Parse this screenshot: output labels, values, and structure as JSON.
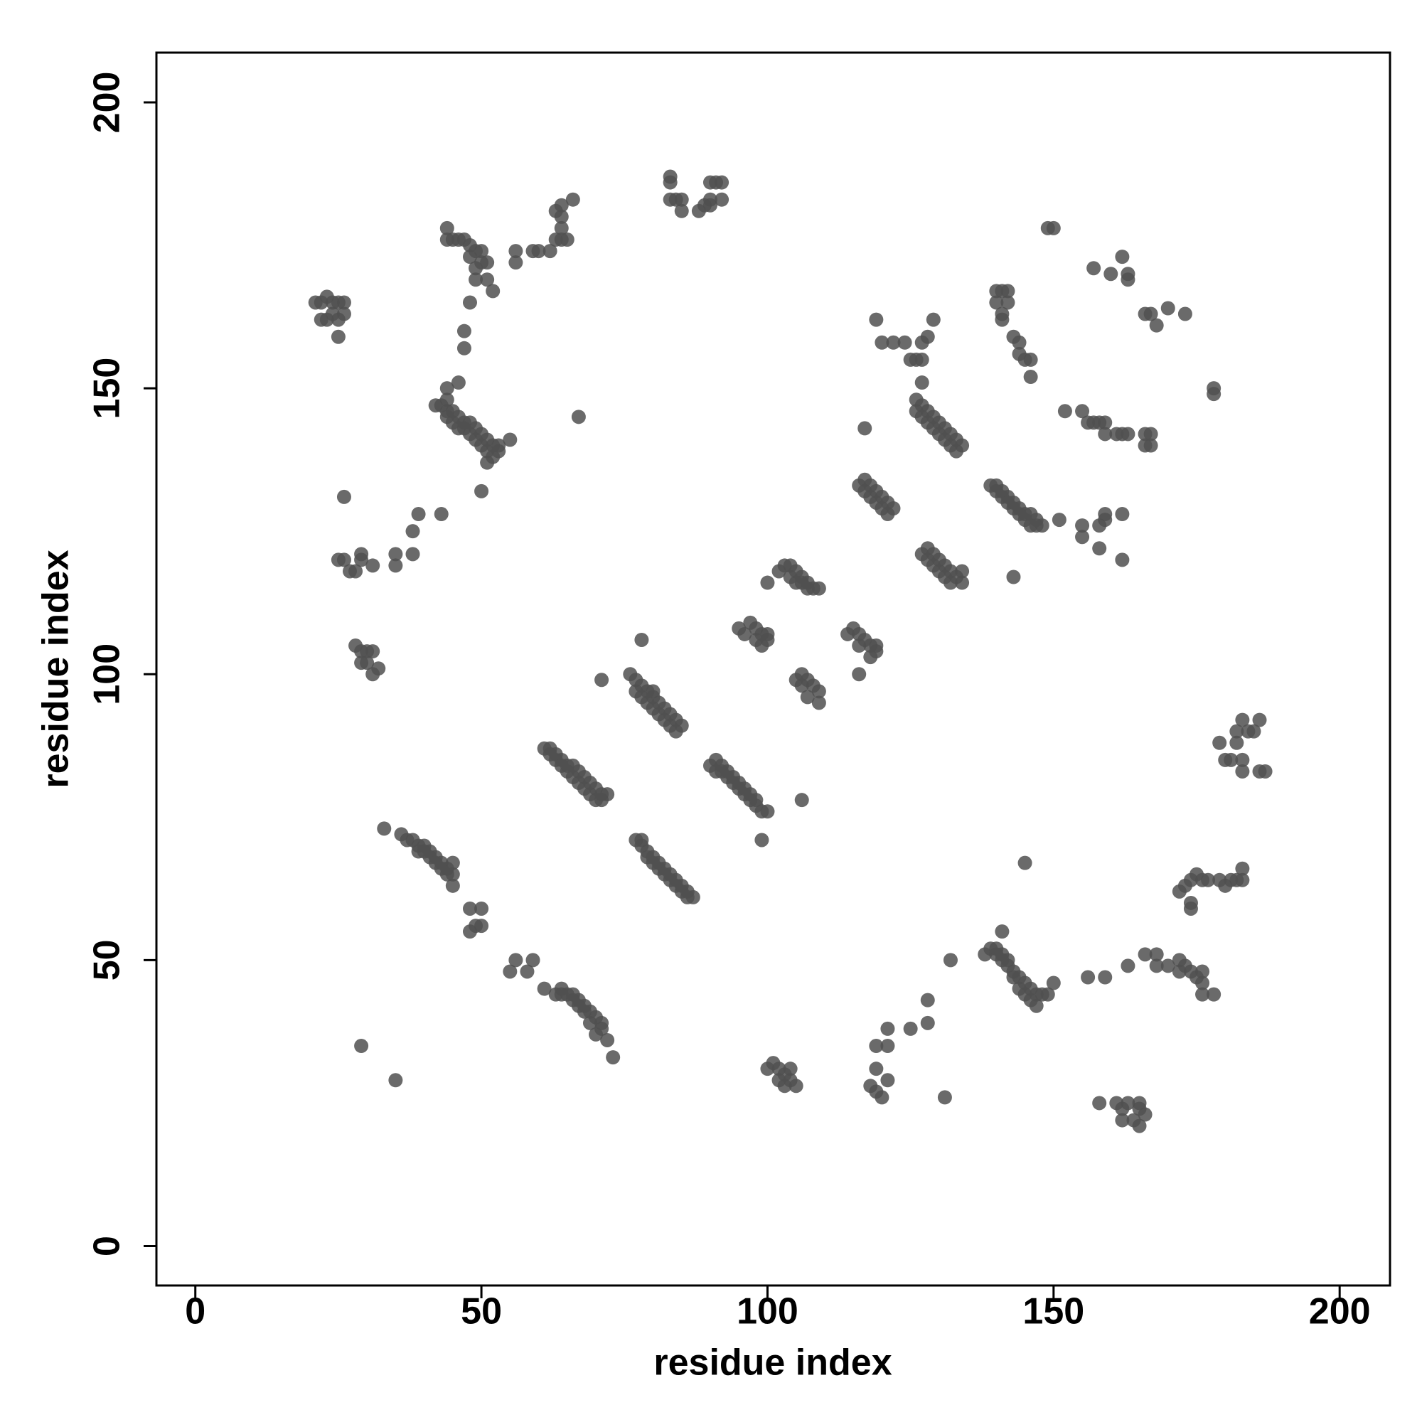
{
  "chart_data": {
    "type": "scatter",
    "x_label": "residue index",
    "y_label": "residue index",
    "color": "#505050",
    "xlim": [
      -6.8,
      208.8
    ],
    "ylim": [
      -6.9,
      208.7
    ],
    "xticks": [
      0,
      50,
      100,
      150,
      200
    ],
    "yticks": [
      0,
      50,
      100,
      150,
      200
    ],
    "x": [
      61,
      62,
      63,
      64,
      65,
      66,
      67,
      68,
      69,
      70,
      71,
      72,
      62,
      63,
      64,
      65,
      66,
      67,
      68,
      69,
      70,
      71,
      76,
      77,
      78,
      79,
      80,
      81,
      82,
      83,
      84,
      85,
      77,
      78,
      79,
      80,
      81,
      82,
      83,
      84,
      80,
      78,
      71,
      77,
      78,
      79,
      80,
      81,
      82,
      83,
      84,
      85,
      86,
      87,
      78,
      79,
      80,
      81,
      82,
      83,
      84,
      85,
      86,
      90,
      91,
      92,
      93,
      94,
      95,
      96,
      97,
      98,
      99,
      100,
      91,
      92,
      93,
      94,
      95,
      96,
      97,
      98,
      99,
      106,
      33,
      36,
      37,
      38,
      39,
      40,
      41,
      42,
      43,
      44,
      45,
      45,
      39,
      40,
      41,
      42,
      43,
      44,
      45,
      48,
      49,
      50,
      50,
      48,
      61,
      63,
      64,
      65,
      66,
      67,
      68,
      69,
      70,
      71,
      72,
      73,
      64,
      66,
      67,
      68,
      69,
      70,
      71,
      55,
      56,
      58,
      59,
      29,
      35,
      100,
      101,
      102,
      103,
      104,
      104,
      105,
      102,
      103,
      118,
      119,
      120,
      119,
      119,
      121,
      121,
      121,
      125,
      128,
      128,
      131,
      132,
      138,
      139,
      140,
      141,
      142,
      143,
      144,
      145,
      146,
      147,
      148,
      149,
      140,
      141,
      142,
      143,
      144,
      145,
      146,
      147,
      150,
      141,
      145,
      156,
      159,
      161,
      162,
      162,
      163,
      164,
      165,
      165,
      166,
      158,
      165,
      163,
      166,
      168,
      168,
      170,
      172,
      172,
      173,
      174,
      175,
      176,
      176,
      176,
      178,
      172,
      173,
      174,
      174,
      174,
      175,
      176,
      177,
      179,
      180,
      181,
      182,
      183,
      183,
      179,
      180,
      181,
      182,
      183,
      183,
      183,
      184,
      185,
      186,
      186,
      187,
      182,
      178,
      178,
      157,
      160,
      163,
      162,
      163,
      166,
      167,
      168,
      170,
      173,
      152,
      155,
      156,
      157,
      158,
      159,
      159,
      161,
      162,
      163,
      166,
      166,
      167,
      167,
      140,
      141,
      142,
      140,
      142,
      141,
      141,
      143,
      144,
      144,
      145,
      146,
      146,
      149,
      150,
      126,
      127,
      128,
      129,
      130,
      131,
      132,
      133,
      134,
      126,
      127,
      128,
      129,
      130,
      131,
      132,
      133,
      127,
      125,
      127,
      127,
      128,
      129,
      124,
      122,
      119,
      126,
      120,
      139,
      140,
      141,
      142,
      143,
      144,
      145,
      146,
      147,
      148,
      140,
      141,
      142,
      143,
      144,
      145,
      146,
      147,
      151,
      143,
      155,
      155,
      158,
      158,
      159,
      159,
      162,
      162,
      116,
      117,
      118,
      119,
      120,
      121,
      122,
      117,
      118,
      119,
      120,
      121,
      117,
      127,
      128,
      129,
      130,
      131,
      132,
      133,
      134,
      128,
      129,
      130,
      131,
      132,
      134,
      102,
      103,
      104,
      105,
      106,
      107,
      108,
      109,
      104,
      105,
      106,
      107,
      100,
      95,
      96,
      97,
      98,
      99,
      100,
      99,
      98,
      100,
      105,
      106,
      107,
      108,
      109,
      107,
      109,
      106,
      114,
      115,
      116,
      117,
      118,
      119,
      119,
      118,
      116,
      116,
      42,
      43,
      44,
      45,
      46,
      47,
      48,
      49,
      50,
      51,
      52,
      53,
      44,
      45,
      46,
      47,
      48,
      49,
      50,
      51,
      52,
      53,
      51,
      44,
      44,
      46,
      55,
      50,
      43,
      67,
      26,
      25,
      27,
      28,
      29,
      29,
      31,
      35,
      35,
      38,
      38,
      39,
      26,
      28,
      29,
      30,
      31,
      29,
      30,
      31,
      32,
      21,
      22,
      23,
      24,
      25,
      26,
      22,
      23,
      25,
      26,
      25,
      24,
      44,
      45,
      46,
      47,
      48,
      49,
      50,
      51,
      49,
      51,
      52,
      48,
      47,
      47,
      44,
      48,
      49,
      50,
      56,
      56,
      59,
      60,
      62,
      63,
      64,
      64,
      64,
      65,
      66,
      63,
      64,
      83,
      83,
      83,
      84,
      85,
      85,
      88,
      89,
      90,
      90,
      91,
      92,
      92,
      90
    ],
    "y": [
      87,
      86,
      86,
      85,
      84,
      84,
      83,
      82,
      81,
      80,
      79,
      79,
      87,
      85,
      84,
      83,
      82,
      81,
      80,
      79,
      78,
      78,
      100,
      99,
      98,
      97,
      96,
      95,
      94,
      93,
      92,
      91,
      97,
      96,
      95,
      94,
      93,
      92,
      91,
      90,
      97,
      106,
      99,
      71,
      70,
      69,
      68,
      67,
      66,
      65,
      64,
      63,
      62,
      61,
      71,
      68,
      67,
      66,
      65,
      64,
      63,
      62,
      61,
      84,
      83,
      83,
      82,
      81,
      80,
      79,
      78,
      77,
      76,
      76,
      85,
      84,
      83,
      82,
      81,
      80,
      79,
      78,
      71,
      78,
      73,
      72,
      71,
      71,
      70,
      70,
      69,
      68,
      67,
      66,
      65,
      63,
      69,
      69,
      68,
      67,
      66,
      65,
      67,
      59,
      56,
      56,
      59,
      55,
      45,
      44,
      45,
      44,
      43,
      43,
      42,
      41,
      40,
      39,
      36,
      33,
      44,
      44,
      42,
      41,
      39,
      37,
      38,
      48,
      50,
      48,
      50,
      35,
      29,
      31,
      32,
      31,
      30,
      31,
      29,
      28,
      29,
      28,
      28,
      27,
      26,
      31,
      35,
      35,
      38,
      29,
      38,
      39,
      43,
      26,
      50,
      51,
      52,
      51,
      50,
      49,
      48,
      47,
      46,
      45,
      44,
      44,
      44,
      52,
      51,
      50,
      47,
      45,
      44,
      43,
      42,
      46,
      55,
      67,
      47,
      47,
      25,
      24,
      22,
      25,
      22,
      21,
      24,
      23,
      25,
      25,
      49,
      51,
      49,
      51,
      49,
      50,
      48,
      49,
      48,
      47,
      46,
      48,
      44,
      44,
      62,
      63,
      64,
      60,
      59,
      65,
      64,
      64,
      64,
      63,
      64,
      64,
      66,
      64,
      88,
      85,
      85,
      90,
      92,
      85,
      83,
      90,
      90,
      92,
      83,
      83,
      88,
      150,
      149,
      171,
      170,
      170,
      173,
      169,
      163,
      163,
      161,
      164,
      163,
      146,
      146,
      144,
      144,
      144,
      144,
      142,
      142,
      142,
      142,
      142,
      140,
      142,
      140,
      167,
      167,
      167,
      165,
      165,
      163,
      162,
      159,
      158,
      156,
      155,
      155,
      152,
      178,
      178,
      148,
      147,
      146,
      145,
      144,
      143,
      142,
      141,
      140,
      146,
      145,
      144,
      143,
      142,
      141,
      140,
      139,
      151,
      155,
      155,
      158,
      159,
      162,
      158,
      158,
      162,
      155,
      158,
      133,
      132,
      131,
      131,
      130,
      129,
      128,
      128,
      127,
      126,
      133,
      132,
      130,
      129,
      128,
      127,
      126,
      126,
      127,
      117,
      126,
      124,
      122,
      126,
      128,
      127,
      128,
      120,
      133,
      134,
      133,
      132,
      131,
      130,
      129,
      132,
      131,
      130,
      129,
      128,
      143,
      121,
      122,
      121,
      120,
      119,
      118,
      117,
      118,
      120,
      119,
      118,
      117,
      116,
      116,
      118,
      119,
      119,
      118,
      117,
      116,
      115,
      115,
      117,
      116,
      116,
      115,
      116,
      108,
      107,
      109,
      108,
      107,
      107,
      105,
      106,
      106,
      99,
      100,
      99,
      98,
      97,
      96,
      95,
      98,
      107,
      108,
      107,
      106,
      105,
      104,
      105,
      103,
      105,
      100,
      147,
      147,
      146,
      146,
      145,
      144,
      144,
      143,
      142,
      141,
      140,
      139,
      145,
      144,
      143,
      143,
      142,
      141,
      140,
      139,
      138,
      140,
      137,
      148,
      150,
      151,
      141,
      132,
      128,
      145,
      120,
      120,
      118,
      118,
      120,
      121,
      119,
      121,
      119,
      121,
      125,
      128,
      131,
      105,
      104,
      104,
      104,
      102,
      102,
      100,
      101,
      165,
      165,
      166,
      165,
      165,
      165,
      162,
      162,
      162,
      163,
      159,
      163,
      178,
      176,
      176,
      176,
      175,
      174,
      172,
      172,
      169,
      169,
      167,
      165,
      160,
      157,
      176,
      173,
      171,
      174,
      174,
      172,
      174,
      174,
      174,
      176,
      178,
      180,
      182,
      176,
      183,
      181,
      176,
      187,
      186,
      183,
      183,
      183,
      181,
      181,
      182,
      183,
      186,
      186,
      186,
      183,
      182
    ]
  }
}
